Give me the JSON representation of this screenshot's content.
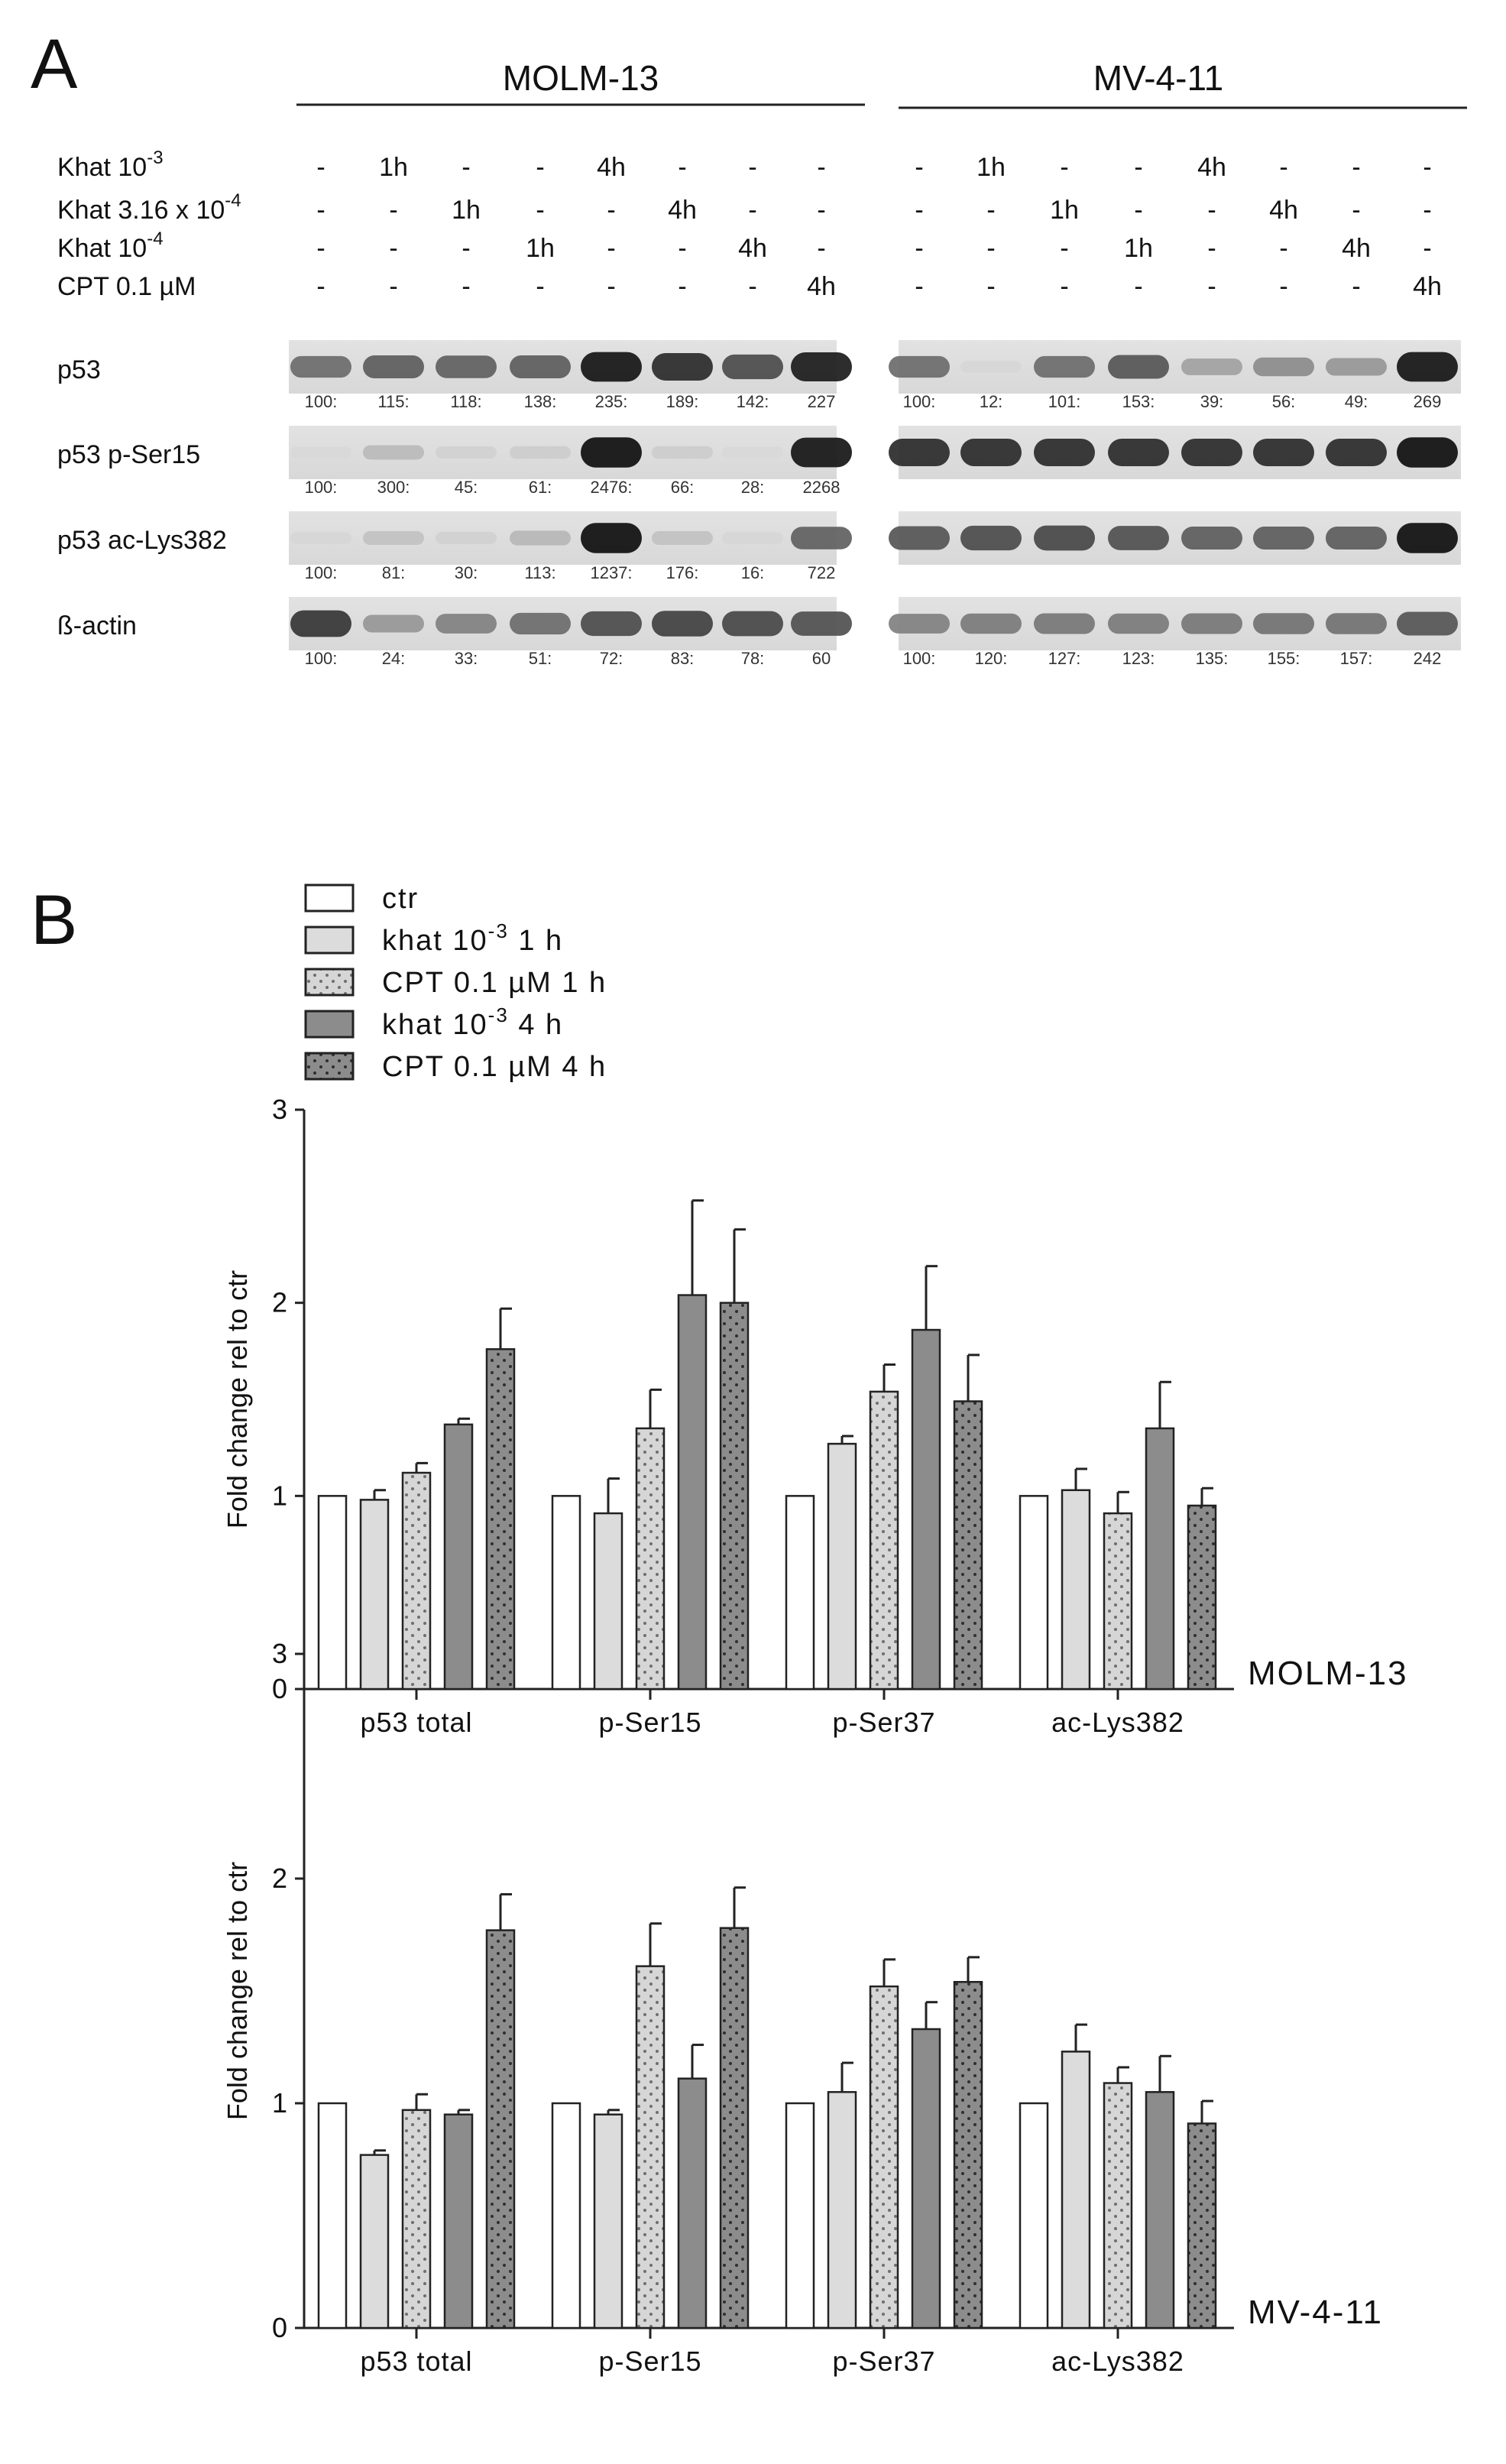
{
  "panel_a": {
    "letter": "A",
    "cell_lines": [
      {
        "name": "MOLM-13"
      },
      {
        "name": "MV-4-11"
      }
    ],
    "treatments": [
      {
        "base": "Khat 10",
        "sup": "-3",
        "cols": [
          "-",
          "1h",
          "-",
          "-",
          "4h",
          "-",
          "-",
          "-"
        ]
      },
      {
        "base": "Khat 3.16 x 10",
        "sup": "-4",
        "cols": [
          "-",
          "-",
          "1h",
          "-",
          "-",
          "4h",
          "-",
          "-"
        ]
      },
      {
        "base": "Khat 10",
        "sup": "-4",
        "cols": [
          "-",
          "-",
          "-",
          "1h",
          "-",
          "-",
          "4h",
          "-"
        ]
      },
      {
        "base": "CPT 0.1 µM",
        "sup": "",
        "cols": [
          "-",
          "-",
          "-",
          "-",
          "-",
          "-",
          "-",
          "4h"
        ]
      }
    ],
    "blots": [
      {
        "label": "p53",
        "molm13": [
          "100:",
          "115:",
          "118:",
          "138:",
          "235:",
          "189:",
          "142:",
          "227"
        ],
        "mv411": [
          "100:",
          "12:",
          "101:",
          "153:",
          "39:",
          "56:",
          "49:",
          "269"
        ]
      },
      {
        "label": "p53 p-Ser15",
        "molm13": [
          "100:",
          "300:",
          "45:",
          "61:",
          "2476:",
          "66:",
          "28:",
          "2268"
        ],
        "mv411": []
      },
      {
        "label": "p53 ac-Lys382",
        "molm13": [
          "100:",
          "81:",
          "30:",
          "113:",
          "1237:",
          "176:",
          "16:",
          "722"
        ],
        "mv411": []
      },
      {
        "label": "ß-actin",
        "molm13": [
          "100:",
          "24:",
          "33:",
          "51:",
          "72:",
          "83:",
          "78:",
          "60"
        ],
        "mv411": [
          "100:",
          "120:",
          "127:",
          "123:",
          "135:",
          "155:",
          "157:",
          "242"
        ]
      }
    ],
    "band_intensity": {
      "molm13": [
        [
          0.55,
          0.62,
          0.6,
          0.62,
          0.95,
          0.85,
          0.7,
          0.92
        ],
        [
          0.04,
          0.18,
          0.08,
          0.1,
          0.98,
          0.1,
          0.04,
          0.95
        ],
        [
          0.05,
          0.15,
          0.08,
          0.2,
          0.98,
          0.15,
          0.05,
          0.6
        ],
        [
          0.8,
          0.35,
          0.45,
          0.55,
          0.7,
          0.75,
          0.72,
          0.68
        ]
      ],
      "mv411": [
        [
          0.55,
          0.05,
          0.55,
          0.65,
          0.3,
          0.4,
          0.35,
          0.95
        ],
        [
          0.85,
          0.85,
          0.85,
          0.85,
          0.85,
          0.85,
          0.85,
          0.98
        ],
        [
          0.65,
          0.7,
          0.72,
          0.68,
          0.62,
          0.62,
          0.62,
          0.98
        ],
        [
          0.45,
          0.48,
          0.5,
          0.48,
          0.5,
          0.52,
          0.52,
          0.65
        ]
      ]
    }
  },
  "panel_b": {
    "letter": "B",
    "legend": [
      {
        "base": "ctr",
        "sup": "",
        "tail": "",
        "color": "#ffffff",
        "pattern": "none"
      },
      {
        "base": "khat 10",
        "sup": "-3",
        "tail": " 1 h",
        "color": "#dcdcdc",
        "pattern": "none"
      },
      {
        "base": "CPT 0.1 µM 1 h",
        "sup": "",
        "tail": "",
        "color": "#d6d6d6",
        "pattern": "dots"
      },
      {
        "base": "khat 10",
        "sup": "-3",
        "tail": " 4 h",
        "color": "#8c8c8c",
        "pattern": "none"
      },
      {
        "base": "CPT 0.1 µM 4 h",
        "sup": "",
        "tail": "",
        "color": "#8c8c8c",
        "pattern": "dots"
      }
    ]
  },
  "chart_data": [
    {
      "type": "bar",
      "cell_line": "MOLM-13",
      "categories": [
        "p53 total",
        "p-Ser15",
        "p-Ser37",
        "ac-Lys382"
      ],
      "ylabel": "Fold change rel to ctr",
      "ylim": [
        0,
        3
      ],
      "yticks": [
        "0",
        "1",
        "2",
        "3"
      ],
      "series": [
        {
          "name": "ctr",
          "values": [
            1.0,
            1.0,
            1.0,
            1.0
          ],
          "err": [
            0,
            0,
            0,
            0
          ]
        },
        {
          "name": "khat 10-3 1 h",
          "values": [
            0.98,
            0.91,
            1.27,
            1.03
          ],
          "err": [
            0.05,
            0.18,
            0.04,
            0.11
          ]
        },
        {
          "name": "CPT 0.1 µM 1 h",
          "values": [
            1.12,
            1.35,
            1.54,
            0.91
          ],
          "err": [
            0.05,
            0.2,
            0.14,
            0.11
          ]
        },
        {
          "name": "khat 10-3 4 h",
          "values": [
            1.37,
            2.04,
            1.86,
            1.35
          ],
          "err": [
            0.03,
            0.49,
            0.33,
            0.24
          ]
        },
        {
          "name": "CPT 0.1 µM 4 h",
          "values": [
            1.76,
            2.0,
            1.49,
            0.95
          ],
          "err": [
            0.21,
            0.38,
            0.24,
            0.09
          ]
        }
      ]
    },
    {
      "type": "bar",
      "cell_line": "MV-4-11",
      "categories": [
        "p53 total",
        "p-Ser15",
        "p-Ser37",
        "ac-Lys382"
      ],
      "ylabel": "Fold change rel to ctr",
      "ylim": [
        0,
        3
      ],
      "yticks": [
        "0",
        "1",
        "2",
        "3"
      ],
      "series": [
        {
          "name": "ctr",
          "values": [
            1.0,
            1.0,
            1.0,
            1.0
          ],
          "err": [
            0,
            0,
            0,
            0
          ]
        },
        {
          "name": "khat 10-3 1 h",
          "values": [
            0.77,
            0.95,
            1.05,
            1.23
          ],
          "err": [
            0.02,
            0.02,
            0.13,
            0.12
          ]
        },
        {
          "name": "CPT 0.1 µM 1 h",
          "values": [
            0.97,
            1.61,
            1.52,
            1.09
          ],
          "err": [
            0.07,
            0.19,
            0.12,
            0.07
          ]
        },
        {
          "name": "khat 10-3 4 h",
          "values": [
            0.95,
            1.11,
            1.33,
            1.05
          ],
          "err": [
            0.02,
            0.15,
            0.12,
            0.16
          ]
        },
        {
          "name": "CPT 0.1 µM 4 h",
          "values": [
            1.77,
            1.78,
            1.54,
            0.91
          ],
          "err": [
            0.16,
            0.18,
            0.11,
            0.1
          ]
        }
      ]
    }
  ]
}
